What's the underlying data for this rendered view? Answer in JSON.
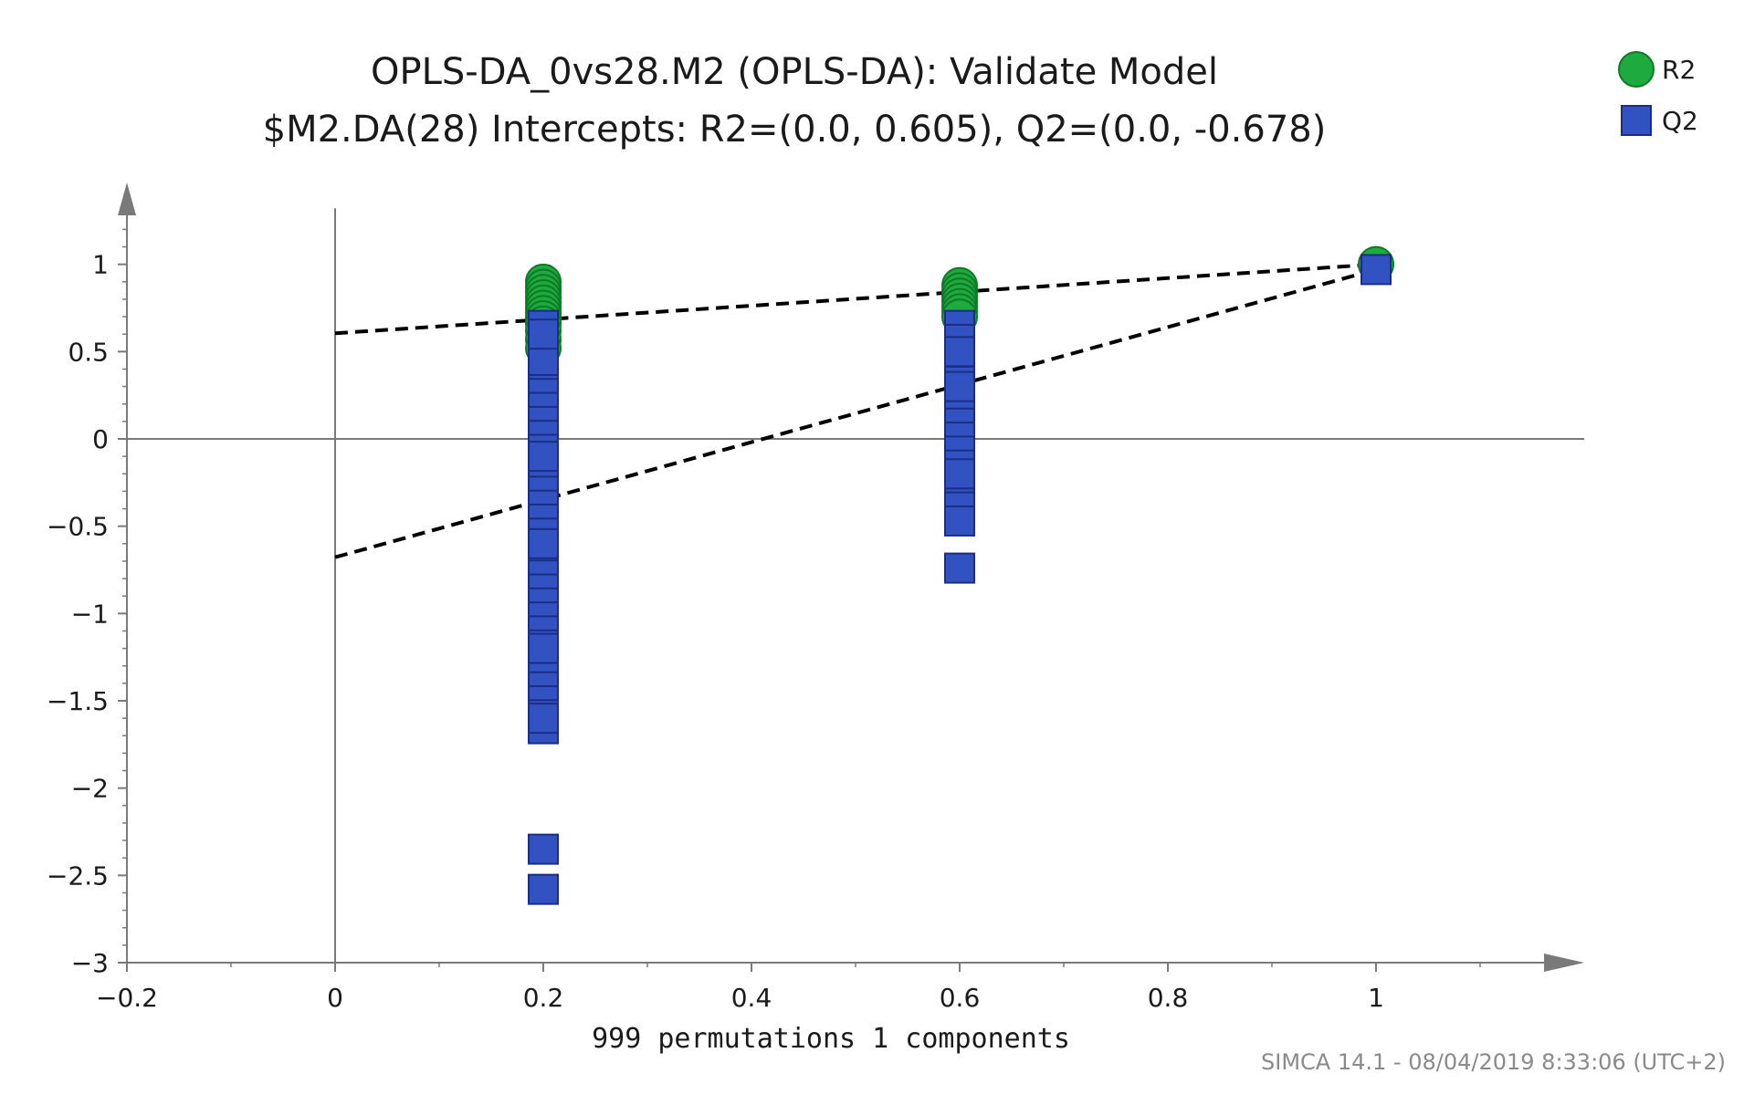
{
  "chart_data": {
    "type": "scatter",
    "title": "OPLS-DA_0vs28.M2 (OPLS-DA): Validate Model",
    "subtitle": "$M2.DA(28) Intercepts: R2=(0.0, 0.605), Q2=(0.0, -0.678)",
    "xlabel": "999 permutations 1 components",
    "ylabel": "",
    "xlim": [
      -0.2,
      1.2
    ],
    "ylim": [
      -3,
      1.3
    ],
    "x_ticks": [
      -0.2,
      0,
      0.2,
      0.4,
      0.6,
      0.8,
      1
    ],
    "x_tick_labels": [
      "−0.2",
      "0",
      "0.2",
      "0.4",
      "0.6",
      "0.8",
      "1"
    ],
    "y_ticks": [
      1,
      0.5,
      0,
      -0.5,
      -1,
      -1.5,
      -2,
      -2.5,
      -3
    ],
    "y_tick_labels": [
      "1",
      "0.5",
      "0",
      "−0.5",
      "−1",
      "−1.5",
      "−2",
      "−2.5",
      "−3"
    ],
    "legend_position": "top-right",
    "series": [
      {
        "name": "R2",
        "marker": "circle",
        "color": "#1faa3f",
        "edge_color": "#0d7a26",
        "x": [
          0.2,
          0.2,
          0.2,
          0.2,
          0.2,
          0.2,
          0.2,
          0.2,
          0.2,
          0.2,
          0.2,
          0.2,
          0.6,
          0.6,
          0.6,
          0.6,
          0.6,
          0.6,
          0.6,
          1.0
        ],
        "y": [
          0.9,
          0.87,
          0.84,
          0.81,
          0.78,
          0.75,
          0.72,
          0.69,
          0.66,
          0.62,
          0.57,
          0.52,
          0.88,
          0.85,
          0.82,
          0.79,
          0.76,
          0.73,
          0.7,
          1.0
        ]
      },
      {
        "name": "Q2",
        "marker": "square",
        "color": "#3352c2",
        "edge_color": "#1a2e85",
        "x": [
          0.2,
          0.2,
          0.2,
          0.2,
          0.2,
          0.2,
          0.2,
          0.2,
          0.2,
          0.2,
          0.2,
          0.2,
          0.2,
          0.2,
          0.2,
          0.2,
          0.2,
          0.2,
          0.2,
          0.2,
          0.2,
          0.2,
          0.2,
          0.2,
          0.2,
          0.2,
          0.2,
          0.2,
          0.2,
          0.2,
          0.2,
          0.2,
          0.2,
          0.2,
          0.2,
          0.2,
          0.2,
          0.2,
          0.6,
          0.6,
          0.6,
          0.6,
          0.6,
          0.6,
          0.6,
          0.6,
          0.6,
          0.6,
          0.6,
          0.6,
          0.6,
          0.6,
          0.6,
          0.6,
          0.6,
          0.6,
          0.6,
          1.0
        ],
        "y": [
          0.65,
          0.58,
          0.5,
          0.42,
          0.34,
          0.26,
          0.18,
          0.1,
          0.02,
          -0.06,
          -0.14,
          -0.22,
          -0.3,
          -0.38,
          -0.46,
          -0.54,
          -0.62,
          -0.7,
          -0.78,
          -0.86,
          -0.94,
          -1.02,
          -1.1,
          -1.18,
          -1.26,
          -1.34,
          -1.42,
          -1.5,
          -1.58,
          -1.66,
          0.45,
          -0.1,
          -0.6,
          -1.2,
          0.6,
          -2.35,
          -2.58,
          -1.6,
          0.65,
          0.57,
          0.49,
          0.41,
          0.33,
          0.25,
          0.17,
          0.09,
          0.01,
          -0.07,
          -0.15,
          -0.23,
          -0.31,
          -0.39,
          -0.47,
          0.5,
          -0.2,
          0.3,
          -0.74,
          0.97
        ]
      }
    ],
    "lines": [
      {
        "name": "R2 regression",
        "style": "dashed",
        "x": [
          0.0,
          1.0
        ],
        "y": [
          0.605,
          1.0
        ]
      },
      {
        "name": "Q2 regression",
        "style": "dashed",
        "x": [
          0.0,
          1.0
        ],
        "y": [
          -0.678,
          0.97
        ]
      }
    ],
    "footer": "SIMCA 14.1 - 08/04/2019 8:33:06 (UTC+2)"
  }
}
